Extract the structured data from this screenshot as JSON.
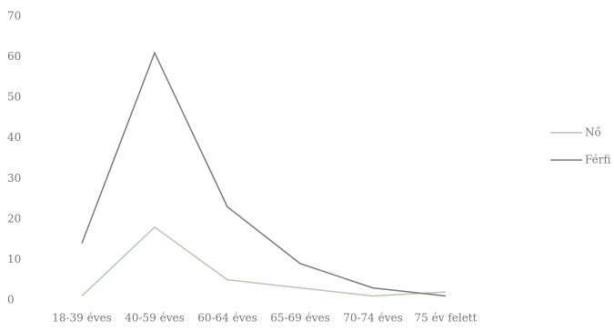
{
  "chart_data": {
    "type": "line",
    "categories": [
      "18-39 éves",
      "40-59 éves",
      "60-64 éves",
      "65-69 éves",
      "70-74 éves",
      "75 év felett"
    ],
    "series": [
      {
        "name": "Nő",
        "color": "#b9c6bb",
        "values": [
          1,
          18,
          5,
          3,
          1,
          2
        ]
      },
      {
        "name": "Férfi",
        "color": "#7a7a7a",
        "values": [
          14,
          61,
          23,
          9,
          3,
          1
        ]
      }
    ],
    "ylim": [
      0,
      70
    ],
    "yticks": [
      0,
      10,
      20,
      30,
      40,
      50,
      60,
      70
    ],
    "grid": false,
    "legend": "right"
  }
}
